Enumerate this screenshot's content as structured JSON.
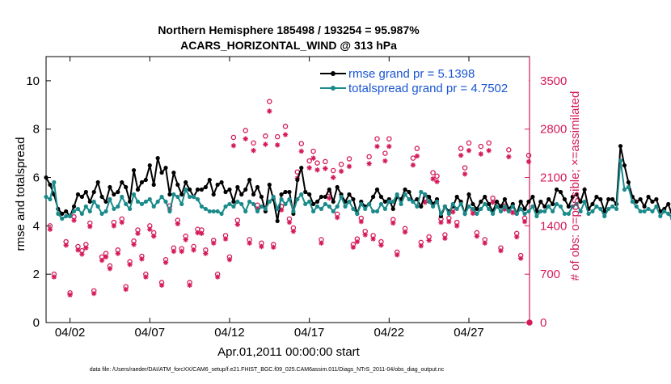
{
  "title_line1": "Northern Hemisphere 185498 / 193254 = 95.987%",
  "title_line2": "ACARS_HORIZONTAL_WIND @ 313 hPa",
  "footer_text": "data file: /Users/raeder/DAI/ATM_forcXX/CAM6_setup/f.e21.FHIST_BGC.f09_025.CAM6assim.011/Diags_NTrS_2011-04/obs_diag_output.nc",
  "colors": {
    "rmse": "#000000",
    "spread": "#1a8a8a",
    "obs": "#d41a5a",
    "legend_text": "#1a55d4"
  },
  "chart_data": {
    "type": "line",
    "xlabel": "Apr.01,2011 00:00:00 start",
    "ylabel_left": "rmse and totalspread",
    "ylabel_right": "# of obs: o=possible; ×=assimilated",
    "xlim": [
      0.5,
      30.8
    ],
    "ylim_left": [
      0,
      11
    ],
    "ylim_right": [
      0,
      3850
    ],
    "x_ticks": [
      {
        "x": 2,
        "label": "04/02"
      },
      {
        "x": 7,
        "label": "04/07"
      },
      {
        "x": 12,
        "label": "04/12"
      },
      {
        "x": 17,
        "label": "04/17"
      },
      {
        "x": 22,
        "label": "04/22"
      },
      {
        "x": 27,
        "label": "04/27"
      }
    ],
    "y_ticks_left": [
      0,
      2,
      4,
      6,
      8,
      10
    ],
    "y_ticks_right": [
      0,
      700,
      1400,
      2100,
      2800,
      3500
    ],
    "legend": [
      {
        "series": "rmse",
        "label": "rmse grand pr = 5.1398"
      },
      {
        "series": "spread",
        "label": "totalspread grand pr = 4.7502"
      }
    ],
    "start_x": 0.5,
    "step": 0.25,
    "series": [
      {
        "name": "rmse",
        "values": [
          6.0,
          5.7,
          5.3,
          4.7,
          4.5,
          4.6,
          4.4,
          4.8,
          5.3,
          5.2,
          5.4,
          5.0,
          5.4,
          5.8,
          5.2,
          5.0,
          5.6,
          5.3,
          5.4,
          5.8,
          5.6,
          5.0,
          6.3,
          5.5,
          5.8,
          5.9,
          6.5,
          5.7,
          6.8,
          6.2,
          6.4,
          5.3,
          6.2,
          5.7,
          5.3,
          5.8,
          5.5,
          5.2,
          5.5,
          5.5,
          5.6,
          5.9,
          5.3,
          5.7,
          5.8,
          5.4,
          5.5,
          5.0,
          5.6,
          5.3,
          5.5,
          5.9,
          5.3,
          5.6,
          5.2,
          4.6,
          5.7,
          5.1,
          4.2,
          5.3,
          5.4,
          5.4,
          4.5,
          5.9,
          6.4,
          5.4,
          5.3,
          4.9,
          5.0,
          5.2,
          5.2,
          5.5,
          5.0,
          5.6,
          5.3,
          5.0,
          5.3,
          5.1,
          4.5,
          5.0,
          4.8,
          4.9,
          5.2,
          5.5,
          5.2,
          5.0,
          5.1,
          4.7,
          5.2,
          5.1,
          5.5,
          5.4,
          5.0,
          5.1,
          4.8,
          5.3,
          5.2,
          4.9,
          5.1,
          4.4,
          4.8,
          4.6,
          4.8,
          5.2,
          5.0,
          4.5,
          5.3,
          4.9,
          4.7,
          5.0,
          5.2,
          4.9,
          4.6,
          5.0,
          4.8,
          5.1,
          4.7,
          4.9,
          4.5,
          5.0,
          4.7,
          5.0,
          5.2,
          4.6,
          5.0,
          4.8,
          5.1,
          4.9,
          5.5,
          5.4,
          5.1,
          4.8,
          5.2,
          5.3,
          5.0,
          5.5,
          4.7,
          4.9,
          5.2,
          5.1,
          4.6,
          5.1,
          5.1,
          4.9,
          7.3,
          6.5,
          5.8,
          5.2,
          5.0,
          5.1,
          4.8,
          5.2,
          5.0,
          5.1,
          4.6,
          4.7,
          4.9,
          4.4,
          5.1,
          4.9,
          5.0,
          4.8,
          4.9,
          4.6,
          4.5,
          4.6,
          4.7
        ]
      },
      {
        "name": "spread",
        "values": [
          5.2,
          5.1,
          5.8,
          4.5,
          4.3,
          4.4,
          4.4,
          4.6,
          4.7,
          4.5,
          4.8,
          4.6,
          5.0,
          4.8,
          4.5,
          4.6,
          5.1,
          4.7,
          4.8,
          5.2,
          4.9,
          4.7,
          5.3,
          5.0,
          4.9,
          5.0,
          5.1,
          4.8,
          5.0,
          5.2,
          5.0,
          4.6,
          5.3,
          5.2,
          4.9,
          5.5,
          5.2,
          5.2,
          5.1,
          4.8,
          4.7,
          4.6,
          4.6,
          4.6,
          4.5,
          4.8,
          4.9,
          4.8,
          5.0,
          4.9,
          4.6,
          5.0,
          4.9,
          4.6,
          4.8,
          4.7,
          5.0,
          5.2,
          4.7,
          5.1,
          4.9,
          5.1,
          4.6,
          5.1,
          5.3,
          4.9,
          5.0,
          4.6,
          4.8,
          4.7,
          4.9,
          4.8,
          4.6,
          4.8,
          5.2,
          4.8,
          5.0,
          4.7,
          4.5,
          4.9,
          4.7,
          4.9,
          4.6,
          4.6,
          4.9,
          4.7,
          5.0,
          5.0,
          5.3,
          4.9,
          5.3,
          5.1,
          5.0,
          4.8,
          5.4,
          5.3,
          5.0,
          4.8,
          5.0,
          4.5,
          4.8,
          4.5,
          4.9,
          4.7,
          4.9,
          4.5,
          4.8,
          4.7,
          4.5,
          4.7,
          4.9,
          4.7,
          4.5,
          4.8,
          4.6,
          4.8,
          4.6,
          4.8,
          4.5,
          4.7,
          4.5,
          4.6,
          4.8,
          4.4,
          4.6,
          4.6,
          4.8,
          4.6,
          4.9,
          4.8,
          4.5,
          4.5,
          4.8,
          4.9,
          4.6,
          5.0,
          4.5,
          4.6,
          4.8,
          4.7,
          4.4,
          4.7,
          4.8,
          4.7,
          6.7,
          5.5,
          5.6,
          5.0,
          4.8,
          4.6,
          4.6,
          4.7,
          4.6,
          4.8,
          4.4,
          4.6,
          4.5,
          4.3,
          4.8,
          4.6,
          4.7,
          4.6,
          4.7,
          4.5,
          4.4,
          4.5,
          4.5
        ]
      }
    ],
    "obs_possible": [
      [
        0.75,
        1400
      ],
      [
        1.0,
        700
      ],
      [
        1.75,
        1170
      ],
      [
        2.0,
        430
      ],
      [
        2.5,
        1100
      ],
      [
        2.75,
        1040
      ],
      [
        3.0,
        1130
      ],
      [
        3.25,
        1440
      ],
      [
        3.5,
        460
      ],
      [
        4.0,
        950
      ],
      [
        4.25,
        1000
      ],
      [
        4.5,
        820
      ],
      [
        4.75,
        1450
      ],
      [
        5.0,
        1050
      ],
      [
        5.25,
        1500
      ],
      [
        5.5,
        520
      ],
      [
        5.75,
        880
      ],
      [
        6.0,
        1180
      ],
      [
        6.25,
        1340
      ],
      [
        6.5,
        960
      ],
      [
        6.75,
        700
      ],
      [
        7.0,
        1400
      ],
      [
        7.25,
        1300
      ],
      [
        7.75,
        580
      ],
      [
        8.0,
        910
      ],
      [
        8.5,
        1080
      ],
      [
        8.75,
        1480
      ],
      [
        9.0,
        1070
      ],
      [
        9.25,
        1250
      ],
      [
        9.5,
        580
      ],
      [
        9.75,
        1100
      ],
      [
        10.0,
        1350
      ],
      [
        10.25,
        1340
      ],
      [
        10.5,
        1050
      ],
      [
        11.0,
        1190
      ],
      [
        11.25,
        700
      ],
      [
        11.75,
        1260
      ],
      [
        12.0,
        950
      ],
      [
        12.25,
        2680
      ],
      [
        12.5,
        1480
      ],
      [
        13.0,
        2780
      ],
      [
        13.25,
        1200
      ],
      [
        13.75,
        1700
      ],
      [
        14.0,
        1150
      ],
      [
        14.25,
        2700
      ],
      [
        14.75,
        1130
      ],
      [
        15.0,
        2690
      ],
      [
        15.25,
        1680
      ],
      [
        15.75,
        1500
      ],
      [
        16.0,
        1370
      ],
      [
        16.5,
        2590
      ],
      [
        17.0,
        2340
      ],
      [
        17.25,
        2480
      ],
      [
        17.5,
        2310
      ],
      [
        17.75,
        1200
      ],
      [
        18.0,
        2330
      ],
      [
        18.5,
        2200
      ],
      [
        18.75,
        1570
      ],
      [
        19.0,
        2290
      ],
      [
        19.5,
        2370
      ],
      [
        19.75,
        1130
      ],
      [
        20.0,
        1210
      ],
      [
        20.5,
        1320
      ],
      [
        20.75,
        2400
      ],
      [
        21.0,
        1260
      ],
      [
        21.25,
        2660
      ],
      [
        21.5,
        1170
      ],
      [
        21.75,
        2450
      ],
      [
        22.0,
        2660
      ],
      [
        22.25,
        1490
      ],
      [
        22.5,
        1020
      ],
      [
        23.0,
        1360
      ],
      [
        23.5,
        2380
      ],
      [
        23.75,
        2520
      ],
      [
        24.0,
        1160
      ],
      [
        24.5,
        1240
      ],
      [
        24.75,
        2170
      ],
      [
        25.25,
        1500
      ],
      [
        25.5,
        1270
      ],
      [
        25.75,
        1510
      ],
      [
        26.0,
        1650
      ],
      [
        26.25,
        1450
      ],
      [
        26.5,
        2520
      ],
      [
        26.75,
        2240
      ],
      [
        27.0,
        2600
      ],
      [
        27.25,
        1630
      ],
      [
        27.5,
        1300
      ],
      [
        27.75,
        2550
      ],
      [
        28.0,
        1200
      ],
      [
        28.5,
        1800
      ],
      [
        29.0,
        1080
      ],
      [
        29.5,
        2500
      ],
      [
        29.75,
        1640
      ],
      [
        30.0,
        1290
      ],
      [
        30.25,
        970
      ],
      [
        30.5,
        1510
      ],
      [
        30.75,
        2420
      ],
      [
        24.25,
        1800
      ],
      [
        16.25,
        2180
      ],
      [
        13.5,
        2600
      ],
      [
        15.5,
        2840
      ],
      [
        20.25,
        1510
      ],
      [
        14.5,
        3200
      ],
      [
        2.25,
        1530
      ],
      [
        8.25,
        1690
      ],
      [
        18.25,
        1880
      ],
      [
        25.0,
        2120
      ],
      [
        28.25,
        2600
      ],
      [
        29.25,
        1690
      ]
    ],
    "obs_assimilated": [
      [
        0.75,
        1350
      ],
      [
        1.0,
        660
      ],
      [
        1.75,
        1120
      ],
      [
        2.0,
        400
      ],
      [
        2.5,
        1050
      ],
      [
        2.75,
        990
      ],
      [
        3.0,
        1080
      ],
      [
        3.25,
        1390
      ],
      [
        3.5,
        420
      ],
      [
        4.0,
        900
      ],
      [
        4.25,
        950
      ],
      [
        4.5,
        780
      ],
      [
        4.75,
        1400
      ],
      [
        5.0,
        1000
      ],
      [
        5.25,
        1450
      ],
      [
        5.5,
        480
      ],
      [
        5.75,
        840
      ],
      [
        6.0,
        1130
      ],
      [
        6.25,
        1290
      ],
      [
        6.5,
        920
      ],
      [
        6.75,
        660
      ],
      [
        7.0,
        1350
      ],
      [
        7.25,
        1250
      ],
      [
        7.75,
        540
      ],
      [
        8.0,
        870
      ],
      [
        8.5,
        1030
      ],
      [
        8.75,
        1430
      ],
      [
        9.0,
        1030
      ],
      [
        9.25,
        1200
      ],
      [
        9.5,
        540
      ],
      [
        9.75,
        1050
      ],
      [
        10.0,
        1300
      ],
      [
        10.25,
        1290
      ],
      [
        10.5,
        1000
      ],
      [
        11.0,
        1150
      ],
      [
        11.25,
        660
      ],
      [
        11.75,
        1210
      ],
      [
        12.0,
        910
      ],
      [
        12.25,
        2560
      ],
      [
        12.5,
        1420
      ],
      [
        13.0,
        2660
      ],
      [
        13.25,
        1150
      ],
      [
        13.75,
        1640
      ],
      [
        14.0,
        1100
      ],
      [
        14.25,
        2580
      ],
      [
        14.75,
        1090
      ],
      [
        15.0,
        2570
      ],
      [
        15.25,
        1630
      ],
      [
        15.75,
        1450
      ],
      [
        16.0,
        1320
      ],
      [
        16.5,
        2480
      ],
      [
        17.0,
        2240
      ],
      [
        17.25,
        2380
      ],
      [
        17.5,
        2210
      ],
      [
        17.75,
        1150
      ],
      [
        18.0,
        2230
      ],
      [
        18.5,
        2100
      ],
      [
        18.75,
        1520
      ],
      [
        19.0,
        2190
      ],
      [
        19.5,
        2260
      ],
      [
        19.75,
        1090
      ],
      [
        20.0,
        1170
      ],
      [
        20.5,
        1270
      ],
      [
        20.75,
        2300
      ],
      [
        21.0,
        1210
      ],
      [
        21.25,
        2550
      ],
      [
        21.5,
        1120
      ],
      [
        21.75,
        2340
      ],
      [
        22.0,
        2550
      ],
      [
        22.25,
        1440
      ],
      [
        22.5,
        980
      ],
      [
        23.0,
        1310
      ],
      [
        23.5,
        2280
      ],
      [
        23.75,
        2410
      ],
      [
        24.0,
        1110
      ],
      [
        24.5,
        1190
      ],
      [
        24.75,
        2080
      ],
      [
        25.25,
        1450
      ],
      [
        25.5,
        1220
      ],
      [
        25.75,
        1460
      ],
      [
        26.0,
        1600
      ],
      [
        26.25,
        1400
      ],
      [
        26.5,
        2420
      ],
      [
        26.75,
        2150
      ],
      [
        27.0,
        2490
      ],
      [
        27.25,
        1580
      ],
      [
        27.5,
        1250
      ],
      [
        27.75,
        2440
      ],
      [
        28.0,
        1150
      ],
      [
        28.5,
        1740
      ],
      [
        29.0,
        1040
      ],
      [
        29.5,
        2400
      ],
      [
        29.75,
        1590
      ],
      [
        30.0,
        1240
      ],
      [
        30.25,
        930
      ],
      [
        30.5,
        1460
      ],
      [
        30.75,
        2330
      ],
      [
        24.25,
        1740
      ],
      [
        16.25,
        2090
      ],
      [
        13.5,
        2490
      ],
      [
        15.5,
        2720
      ],
      [
        20.25,
        1460
      ],
      [
        14.5,
        3060
      ],
      [
        2.25,
        1480
      ],
      [
        8.25,
        1640
      ],
      [
        18.25,
        1800
      ],
      [
        25.0,
        2040
      ],
      [
        28.25,
        2490
      ],
      [
        29.25,
        1640
      ]
    ],
    "obs_outlier_x": [
      [
        30.8,
        0
      ]
    ]
  }
}
